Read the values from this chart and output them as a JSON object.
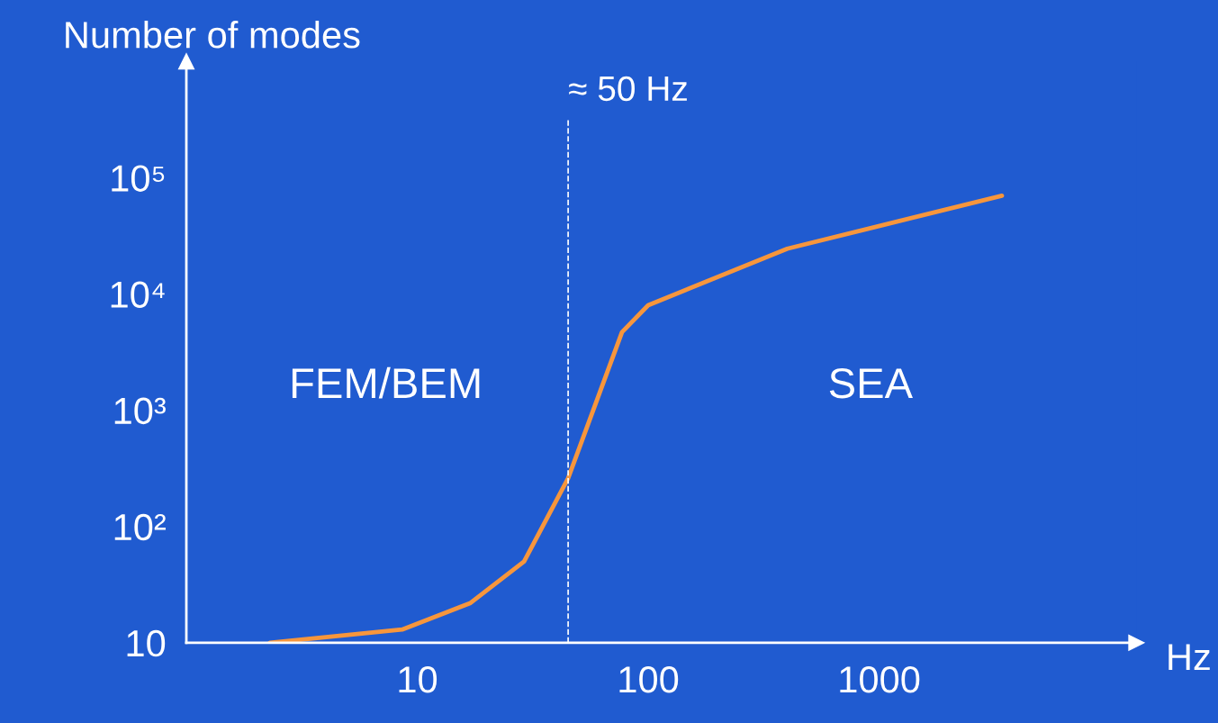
{
  "chart_data": {
    "type": "line",
    "xlabel": "Hz",
    "ylabel": "Number of modes",
    "log": "xy",
    "grid": false,
    "marker": "none",
    "line_style": "solid",
    "series": [
      {
        "color": "#f7963c",
        "x": [
          2.3,
          8.6,
          17,
          29,
          45,
          77,
          100,
          400,
          3400
        ],
        "values": [
          10,
          13,
          22,
          50,
          260,
          4700,
          8000,
          24500,
          70000
        ]
      }
    ],
    "xlim": [
      1,
      13000
    ],
    "ylim": [
      10,
      1000000
    ],
    "xticks": [
      {
        "value": 1,
        "label": null
      },
      10,
      100,
      1000
    ],
    "yticks": [
      {
        "value": 10,
        "label": "10"
      },
      {
        "value": 100,
        "label": "10²"
      },
      {
        "value": 1000,
        "label": "10³"
      },
      {
        "value": 10000,
        "label": "10⁴"
      },
      {
        "value": 100000,
        "label": "10⁵"
      }
    ],
    "ref_lines": [
      {
        "axis": "x",
        "value": 45,
        "label": "≈ 50 Hz",
        "color": "#ffffff",
        "line_style": "dashed"
      }
    ],
    "annotations": [
      "FEM/BEM",
      "SEA"
    ]
  }
}
